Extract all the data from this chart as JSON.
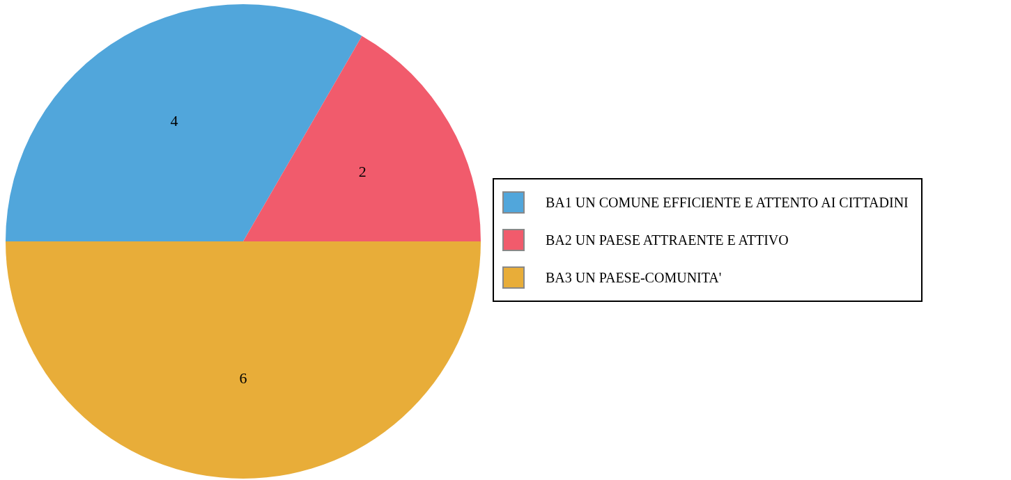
{
  "chart_data": {
    "type": "pie",
    "categories": [
      "BA1 UN COMUNE EFFICIENTE E ATTENTO AI CITTADINI",
      "BA2 UN PAESE ATTRAENTE E ATTIVO",
      "BA3 UN PAESE-COMUNITA'"
    ],
    "values": [
      4,
      2,
      6
    ],
    "colors": [
      "#51a6db",
      "#f15b6c",
      "#e8ad39"
    ],
    "data_labels": true,
    "legend": "right"
  }
}
